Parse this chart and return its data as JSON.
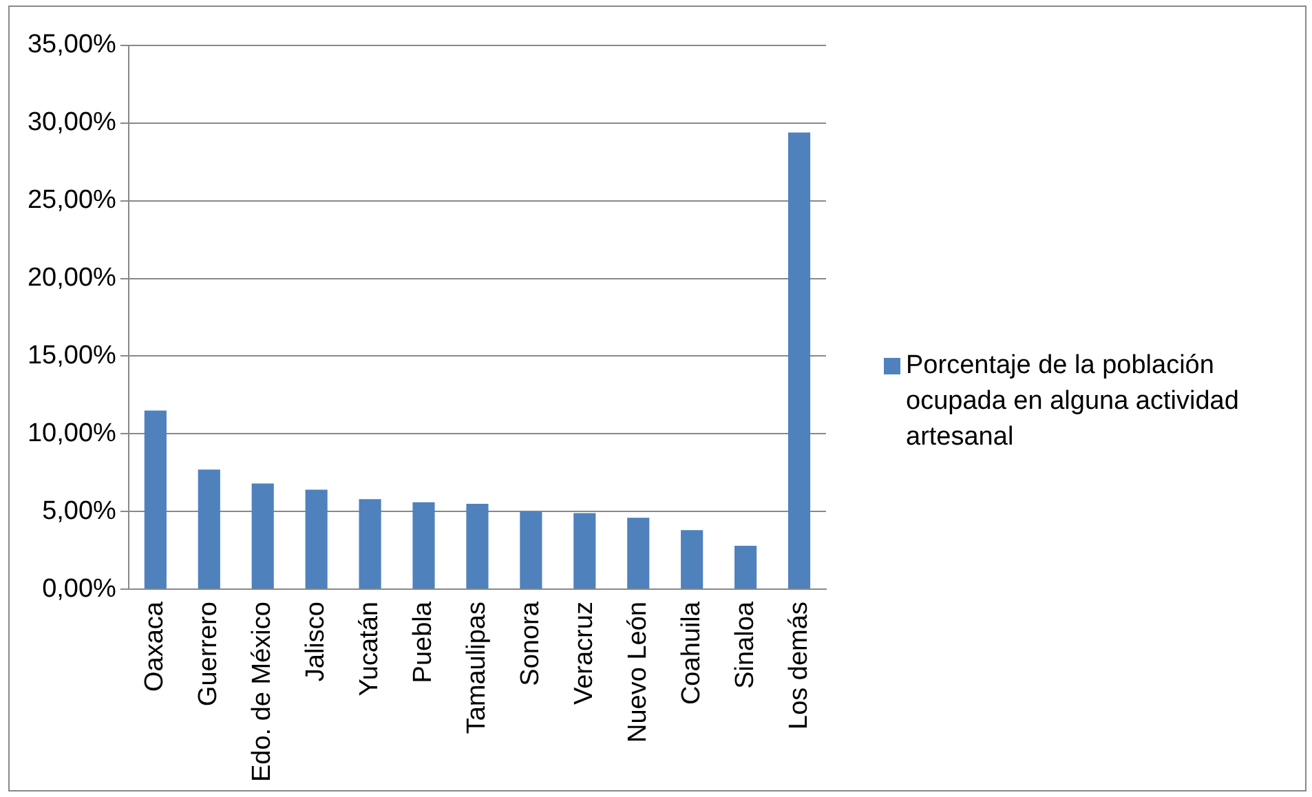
{
  "chart_data": {
    "type": "bar",
    "categories": [
      "Oaxaca",
      "Guerrero",
      "Edo. de México",
      "Jalisco",
      "Yucatán",
      "Puebla",
      "Tamaulipas",
      "Sonora",
      "Veracruz",
      "Nuevo León",
      "Coahuila",
      "Sinaloa",
      "Los demás"
    ],
    "series": [
      {
        "name": "Porcentaje de la población ocupada en alguna actividad artesanal",
        "color": "#4f81bd",
        "values": [
          11.5,
          7.7,
          6.8,
          6.4,
          5.8,
          5.6,
          5.5,
          5.0,
          4.9,
          4.6,
          3.8,
          2.8,
          29.4
        ]
      }
    ],
    "ylim": [
      0,
      35
    ],
    "yticks": [
      {
        "value": 0,
        "label": "0,00%"
      },
      {
        "value": 5,
        "label": "5,00%"
      },
      {
        "value": 10,
        "label": "10,00%"
      },
      {
        "value": 15,
        "label": "15,00%"
      },
      {
        "value": 20,
        "label": "20,00%"
      },
      {
        "value": 25,
        "label": "25,00%"
      },
      {
        "value": 30,
        "label": "30,00%"
      },
      {
        "value": 35,
        "label": "35,00%"
      }
    ],
    "grid": "y",
    "legend": "right"
  }
}
